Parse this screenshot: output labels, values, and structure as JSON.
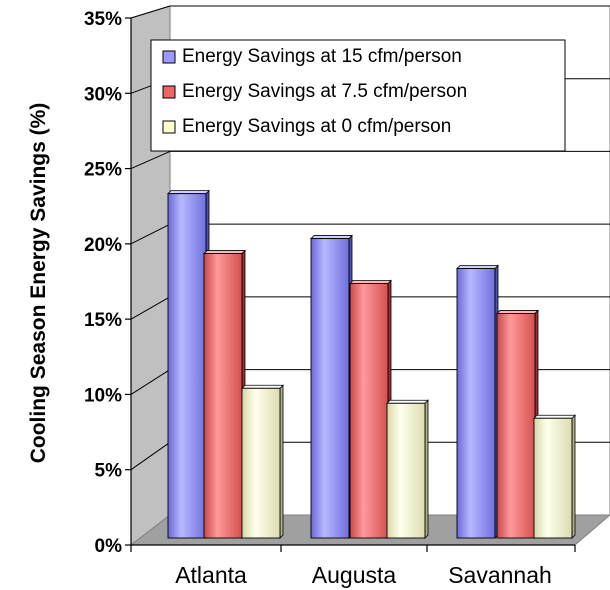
{
  "chart_data": {
    "type": "bar",
    "categories": [
      "Atlanta",
      "Augusta",
      "Savannah"
    ],
    "series": [
      {
        "name": "Energy Savings at 15 cfm/person",
        "values": [
          23,
          20,
          18
        ],
        "color": "#9999ff"
      },
      {
        "name": "Energy Savings at 7.5 cfm/person",
        "values": [
          19,
          17,
          15
        ],
        "color": "#ee6666"
      },
      {
        "name": "Energy Savings at 0 cfm/person",
        "values": [
          10,
          9,
          8
        ],
        "color": "#ffffcc"
      }
    ],
    "ylabel": "Cooling Season Energy Savings (%)",
    "xlabel": "",
    "ylim": [
      0,
      35
    ],
    "yticks": [
      "0%",
      "5%",
      "10%",
      "15%",
      "20%",
      "25%",
      "30%",
      "35%"
    ],
    "grid": true,
    "legend": "top-right",
    "style": "3d-clustered-bar"
  }
}
